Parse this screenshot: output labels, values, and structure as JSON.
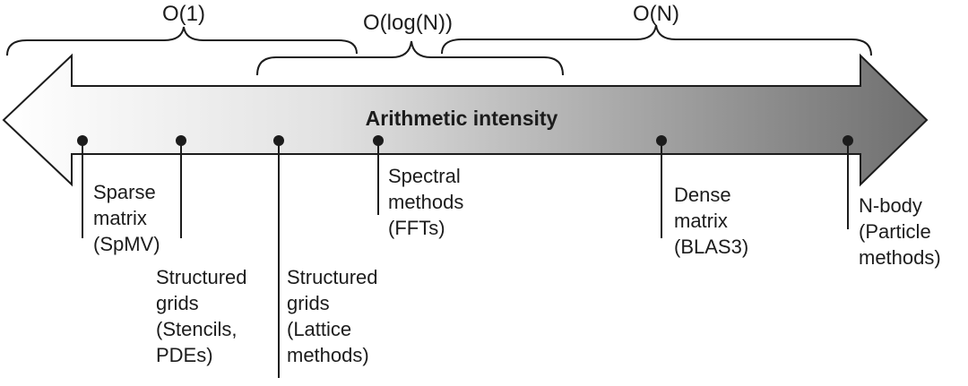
{
  "complexity_labels": {
    "constant": "O(1)",
    "logarithmic": "O(log(N))",
    "linear": "O(N)"
  },
  "axis_title": "Arithmetic intensity",
  "kernels": [
    {
      "lines": [
        "Sparse",
        "matrix",
        "(SpMV)"
      ]
    },
    {
      "lines": [
        "Structured",
        "grids",
        "(Stencils,",
        "PDEs)"
      ]
    },
    {
      "lines": [
        "Structured",
        "grids",
        "(Lattice",
        "methods)"
      ]
    },
    {
      "lines": [
        "Spectral",
        "methods",
        "(FFTs)"
      ]
    },
    {
      "lines": [
        "Dense",
        "matrix",
        "(BLAS3)"
      ]
    },
    {
      "lines": [
        "N-body",
        "(Particle",
        "methods)"
      ]
    }
  ],
  "colors": {
    "arrow_left": "#ffffff",
    "arrow_right": "#6e6e6e",
    "ink": "#1c1c1c"
  }
}
